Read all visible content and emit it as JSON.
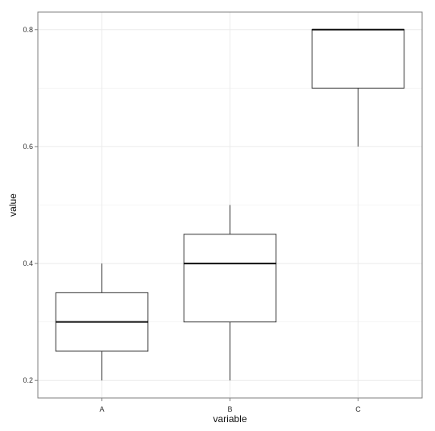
{
  "chart_data": {
    "type": "box",
    "xlabel": "variable",
    "ylabel": "value",
    "categories": [
      "A",
      "B",
      "C"
    ],
    "boxes": [
      {
        "category": "A",
        "whisker_low": 0.2,
        "q1": 0.25,
        "median": 0.3,
        "q3": 0.35,
        "whisker_high": 0.4
      },
      {
        "category": "B",
        "whisker_low": 0.2,
        "q1": 0.3,
        "median": 0.4,
        "q3": 0.45,
        "whisker_high": 0.5
      },
      {
        "category": "C",
        "whisker_low": 0.6,
        "q1": 0.7,
        "median": 0.8,
        "q3": 0.8,
        "whisker_high": 0.8
      }
    ],
    "yticks": [
      0.2,
      0.4,
      0.6,
      0.8
    ],
    "ytick_labels": [
      "0.2",
      "0.4",
      "0.6",
      "0.8"
    ],
    "ylim": [
      0.17,
      0.83
    ],
    "grid": true,
    "colors": {
      "box_fill": "#ffffff",
      "box_stroke": "#333333",
      "median": "#111111",
      "grid": "#ebebeb",
      "panel_border": "#7f7f7f"
    }
  }
}
